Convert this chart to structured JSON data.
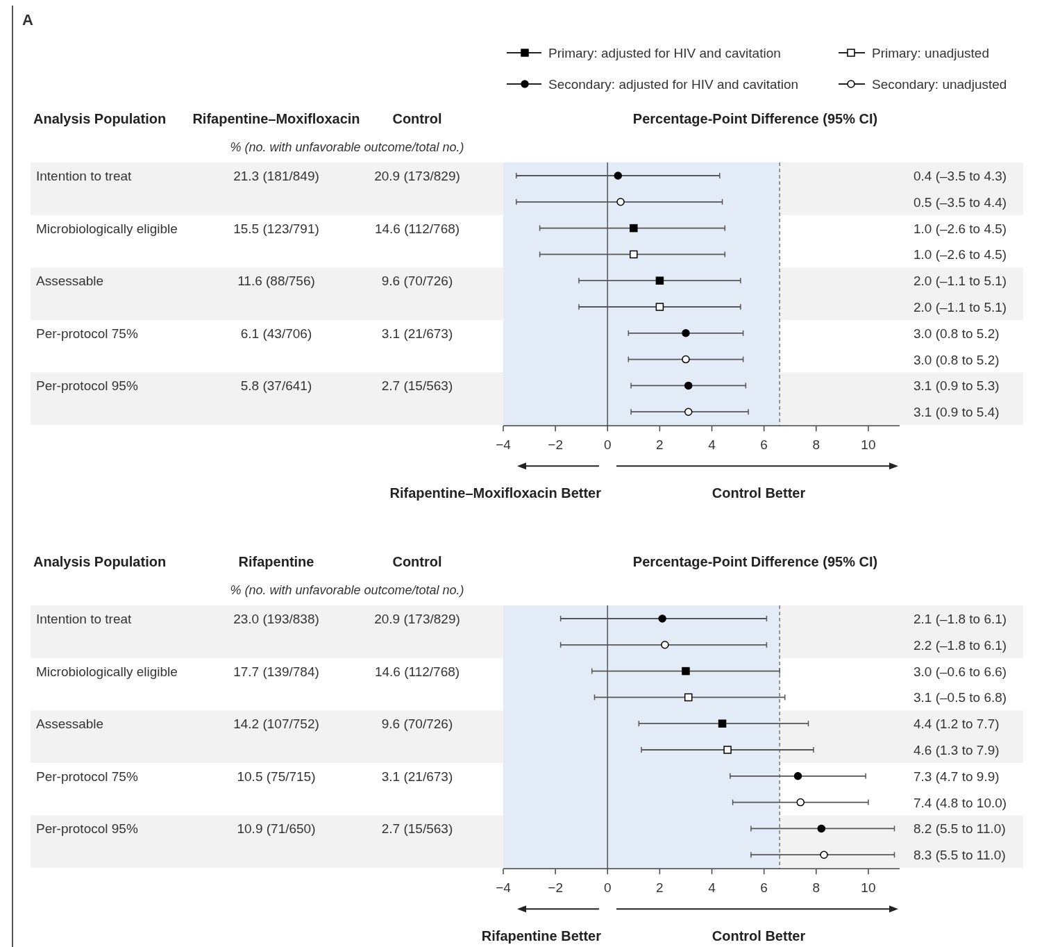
{
  "chart_data": [
    {
      "type": "scatter",
      "orientation": "horizontal",
      "title": "Percentage-Point Difference (95% CI)",
      "ylabel": "Analysis Population",
      "categories": [
        "Intention to treat",
        null,
        "Microbiologically eligible",
        null,
        "Assessable",
        null,
        "Per-protocol 75%",
        null,
        "Per-protocol 95%",
        null
      ],
      "xlim": [
        -4,
        11.2
      ],
      "xticks": [
        -4,
        -2,
        0,
        2,
        4,
        6,
        8,
        10
      ],
      "tick_labels": "x",
      "grid": false,
      "legend": "top right",
      "bands": [
        {
          "axis": "x",
          "from": -4,
          "to": 6.6,
          "color": "#e3ecf6"
        }
      ],
      "ref_lines": [
        {
          "axis": "x",
          "value": 0,
          "color": "#555555",
          "line_style": "solid"
        },
        {
          "axis": "x",
          "value": 6.6,
          "color": "#777777",
          "line_style": "dashed"
        }
      ],
      "annotations": [
        "Rifapentine–Moxifloxacin",
        "Control",
        "% (no. with unfavorable outcome/total no.)",
        "Rifapentine–Moxifloxacin Better",
        "Control Better",
        "21.3 (181/849)",
        "20.9 (173/829)",
        "15.5 (123/791)",
        "14.6 (112/768)",
        "11.6 (88/756)",
        "9.6 (70/726)",
        "6.1 (43/706)",
        "3.1 (21/673)",
        "5.8 (37/641)",
        "2.7 (15/563)",
        "0.4 (–3.5 to 4.3)",
        "0.5 (–3.5 to 4.4)",
        "1.0 (–2.6 to 4.5)",
        "1.0 (–2.6 to 4.5)",
        "2.0 (–1.1 to 5.1)",
        "2.0 (–1.1 to 5.1)",
        "3.0 (0.8 to 5.2)",
        "3.0 (0.8 to 5.2)",
        "3.1 (0.9 to 5.3)",
        "3.1 (0.9 to 5.4)",
        "A"
      ],
      "series": [
        {
          "name": "Primary: adjusted for HIV and cavitation",
          "color": "#000000",
          "marker": "square",
          "values": [
            null,
            null,
            1.0,
            null,
            2.0,
            null,
            null,
            null,
            null,
            null
          ],
          "errors": [
            null,
            null,
            [
              -2.6,
              4.5
            ],
            null,
            [
              -1.1,
              5.1
            ],
            null,
            null,
            null,
            null,
            null
          ]
        },
        {
          "name": "Primary: unadjusted",
          "color": "#ffffff",
          "marker": "square",
          "values": [
            null,
            null,
            null,
            1.0,
            null,
            2.0,
            null,
            null,
            null,
            null
          ],
          "errors": [
            null,
            null,
            null,
            [
              -2.6,
              4.5
            ],
            null,
            [
              -1.1,
              5.1
            ],
            null,
            null,
            null,
            null
          ]
        },
        {
          "name": "Secondary: adjusted for HIV and cavitation",
          "color": "#000000",
          "marker": "circle",
          "values": [
            0.4,
            null,
            null,
            null,
            null,
            null,
            3.0,
            null,
            3.1,
            null
          ],
          "errors": [
            [
              -3.5,
              4.3
            ],
            null,
            null,
            null,
            null,
            null,
            [
              0.8,
              5.2
            ],
            null,
            [
              0.9,
              5.3
            ],
            null
          ]
        },
        {
          "name": "Secondary: unadjusted",
          "color": "#ffffff",
          "marker": "circle",
          "values": [
            null,
            0.5,
            null,
            null,
            null,
            null,
            null,
            3.0,
            null,
            3.1
          ],
          "errors": [
            null,
            [
              -3.5,
              4.4
            ],
            null,
            null,
            null,
            null,
            null,
            [
              0.8,
              5.2
            ],
            null,
            [
              0.9,
              5.4
            ]
          ]
        }
      ]
    },
    {
      "type": "scatter",
      "orientation": "horizontal",
      "title": "Percentage-Point Difference (95% CI)",
      "ylabel": "Analysis Population",
      "categories": [
        "Intention to treat",
        null,
        "Microbiologically eligible",
        null,
        "Assessable",
        null,
        "Per-protocol 75%",
        null,
        "Per-protocol 95%",
        null
      ],
      "xlim": [
        -4,
        11.2
      ],
      "xticks": [
        -4,
        -2,
        0,
        2,
        4,
        6,
        8,
        10
      ],
      "tick_labels": "x",
      "grid": false,
      "bands": [
        {
          "axis": "x",
          "from": -4,
          "to": 6.6,
          "color": "#e3ecf6"
        }
      ],
      "ref_lines": [
        {
          "axis": "x",
          "value": 0,
          "color": "#555555",
          "line_style": "solid"
        },
        {
          "axis": "x",
          "value": 6.6,
          "color": "#777777",
          "line_style": "dashed"
        }
      ],
      "annotations": [
        "Rifapentine",
        "Control",
        "% (no. with unfavorable outcome/total no.)",
        "Rifapentine Better",
        "Control Better",
        "23.0 (193/838)",
        "20.9 (173/829)",
        "17.7 (139/784)",
        "14.6 (112/768)",
        "14.2 (107/752)",
        "9.6 (70/726)",
        "10.5 (75/715)",
        "3.1 (21/673)",
        "10.9 (71/650)",
        "2.7 (15/563)",
        "2.1 (–1.8 to 6.1)",
        "2.2 (–1.8 to 6.1)",
        "3.0 (–0.6 to 6.6)",
        "3.1 (–0.5 to 6.8)",
        "4.4 (1.2 to 7.7)",
        "4.6 (1.3 to 7.9)",
        "7.3 (4.7 to 9.9)",
        "7.4 (4.8 to 10.0)",
        "8.2 (5.5 to 11.0)",
        "8.3 (5.5 to 11.0)"
      ],
      "series": [
        {
          "color": "#000000",
          "marker": "square",
          "values": [
            null,
            null,
            3.0,
            null,
            4.4,
            null,
            null,
            null,
            null,
            null
          ],
          "errors": [
            null,
            null,
            [
              -0.6,
              6.6
            ],
            null,
            [
              1.2,
              7.7
            ],
            null,
            null,
            null,
            null,
            null
          ]
        },
        {
          "color": "#ffffff",
          "marker": "square",
          "values": [
            null,
            null,
            null,
            3.1,
            null,
            4.6,
            null,
            null,
            null,
            null
          ],
          "errors": [
            null,
            null,
            null,
            [
              -0.5,
              6.8
            ],
            null,
            [
              1.3,
              7.9
            ],
            null,
            null,
            null,
            null
          ]
        },
        {
          "color": "#000000",
          "marker": "circle",
          "values": [
            2.1,
            null,
            null,
            null,
            null,
            null,
            7.3,
            null,
            8.2,
            null
          ],
          "errors": [
            [
              -1.8,
              6.1
            ],
            null,
            null,
            null,
            null,
            null,
            [
              4.7,
              9.9
            ],
            null,
            [
              5.5,
              11.0
            ],
            null
          ]
        },
        {
          "color": "#ffffff",
          "marker": "circle",
          "values": [
            null,
            2.2,
            null,
            null,
            null,
            null,
            null,
            7.4,
            null,
            8.3
          ],
          "errors": [
            null,
            [
              -1.8,
              6.1
            ],
            null,
            null,
            null,
            null,
            null,
            [
              4.8,
              10.0
            ],
            null,
            [
              5.5,
              11.0
            ]
          ]
        }
      ]
    }
  ]
}
